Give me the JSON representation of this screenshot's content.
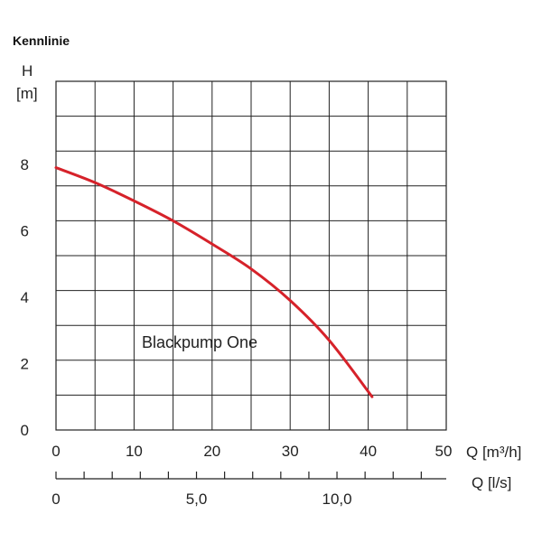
{
  "chart_data": {
    "type": "line",
    "title": "Kennlinie",
    "ylabel_top": "H",
    "ylabel_unit": "[m]",
    "xlabel": "Q [m³/h]",
    "x2label": "Q [l/s]",
    "xlim": [
      0,
      50
    ],
    "ylim": [
      0,
      10.5
    ],
    "x_ticks": [
      "0",
      "10",
      "20",
      "30",
      "40",
      "50"
    ],
    "y_ticks": [
      "0",
      "2",
      "4",
      "6",
      "8"
    ],
    "x2_ticks": [
      "0",
      "5,0",
      "10,0"
    ],
    "grid": true,
    "annotation": "Blackpump One",
    "series": [
      {
        "color": "#d6222a",
        "x": [
          0,
          5,
          10,
          15,
          20,
          25,
          30,
          35,
          40.5
        ],
        "y": [
          7.9,
          7.45,
          6.9,
          6.3,
          5.6,
          4.85,
          3.9,
          2.7,
          1.0
        ]
      }
    ]
  }
}
